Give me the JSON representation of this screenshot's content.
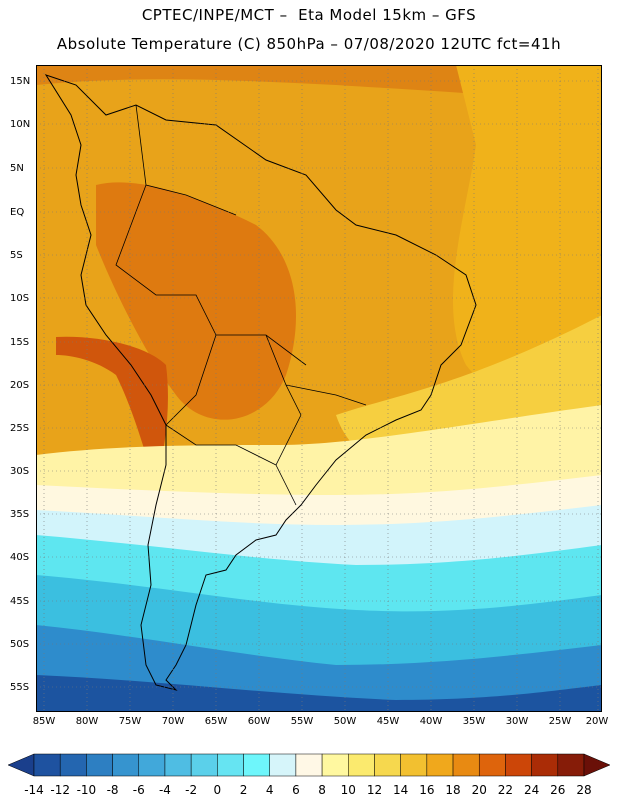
{
  "header": {
    "title_line1": "CPTEC/INPE/MCT –  Eta Model 15km – GFS",
    "title_line2": "Absolute Temperature (C) 850hPa – 07/08/2020 12UTC fct=41h"
  },
  "map": {
    "lon_range": [
      -86,
      -20
    ],
    "lat_range": [
      -58,
      17
    ],
    "lat_ticks": [
      "15N",
      "10N",
      "5N",
      "EQ",
      "5S",
      "10S",
      "15S",
      "20S",
      "25S",
      "30S",
      "35S",
      "40S",
      "45S",
      "50S",
      "55S"
    ],
    "lon_ticks": [
      "85W",
      "80W",
      "75W",
      "70W",
      "65W",
      "60W",
      "55W",
      "50W",
      "45W",
      "40W",
      "35W",
      "30W",
      "25W",
      "20W"
    ],
    "colors": {
      "warm_orange": "#e8a31a",
      "dark_orange": "#de7a10",
      "red_orange": "#d0560c",
      "amber": "#f0b21a",
      "yellow": "#f6cf40",
      "pale_yellow": "#fff3a6",
      "cream": "#fff8e0",
      "light_cyan": "#d2f4fb",
      "cyan": "#5ee6f0",
      "sky": "#3bbfe0",
      "blue": "#2e8ccc",
      "navy": "#1c54a0"
    }
  },
  "colorbar": {
    "labels": [
      "-14",
      "-12",
      "-10",
      "-8",
      "-6",
      "-4",
      "-2",
      "0",
      "2",
      "4",
      "6",
      "8",
      "10",
      "12",
      "14",
      "16",
      "18",
      "20",
      "22",
      "24",
      "26",
      "28"
    ],
    "colors": [
      "#1a3f8c",
      "#1e52a0",
      "#2466b0",
      "#2d7fc2",
      "#3694cf",
      "#41a8da",
      "#4fbde3",
      "#5bd0ea",
      "#66e4f2",
      "#6ef6fb",
      "#d6f5fa",
      "#fff8e6",
      "#fff8a0",
      "#fbea6e",
      "#f6d84e",
      "#f2c030",
      "#f0a81c",
      "#e88a12",
      "#de640c",
      "#cc4608",
      "#aa2c06",
      "#861c08",
      "#6a1008"
    ]
  }
}
